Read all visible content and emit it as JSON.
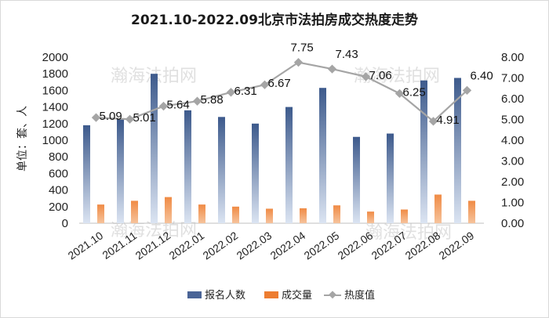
{
  "chart_data": {
    "type": "bar",
    "title": "2021.10-2022.09北京市法拍房成交热度走势",
    "ylabel": "单位：套、人",
    "y2label": "",
    "categories": [
      "2021.10",
      "2021.11",
      "2021.12",
      "2022.01",
      "2022.02",
      "2022.03",
      "2022.04",
      "2022.05",
      "2022.06",
      "2022.07",
      "2022.08",
      "2022.09"
    ],
    "ylim": [
      0,
      2000
    ],
    "yticks": [
      "0",
      "200",
      "400",
      "600",
      "800",
      "1000",
      "1200",
      "1400",
      "1600",
      "1800",
      "2000"
    ],
    "y2lim": [
      0,
      8
    ],
    "y2ticks": [
      "0.00",
      "1.00",
      "2.00",
      "3.00",
      "4.00",
      "5.00",
      "6.00",
      "7.00",
      "8.00"
    ],
    "grid": false,
    "legend_position": "bottom",
    "series": [
      {
        "name": "报名人数",
        "kind": "bar",
        "axis": "left",
        "color": "#4a6496",
        "values": [
          1180,
          1250,
          1800,
          1360,
          1280,
          1200,
          1400,
          1630,
          1040,
          1080,
          1720,
          1750
        ]
      },
      {
        "name": "成交量",
        "kind": "bar",
        "axis": "left",
        "color": "#ed7d31",
        "values": [
          225,
          270,
          315,
          225,
          200,
          175,
          180,
          215,
          140,
          165,
          345,
          270
        ]
      },
      {
        "name": "热度值",
        "kind": "line",
        "axis": "right",
        "color": "#a5a5a5",
        "values": [
          5.09,
          5.01,
          5.64,
          5.88,
          6.31,
          6.67,
          7.75,
          7.43,
          7.06,
          6.25,
          4.91,
          6.4
        ],
        "labels": [
          "5.09",
          "5.01",
          "5.64",
          "5.88",
          "6.31",
          "6.67",
          "7.75",
          "7.43",
          "7.06",
          "6.25",
          "4.91",
          "6.40"
        ]
      }
    ]
  },
  "watermark": {
    "text": "瀚海法拍网"
  }
}
